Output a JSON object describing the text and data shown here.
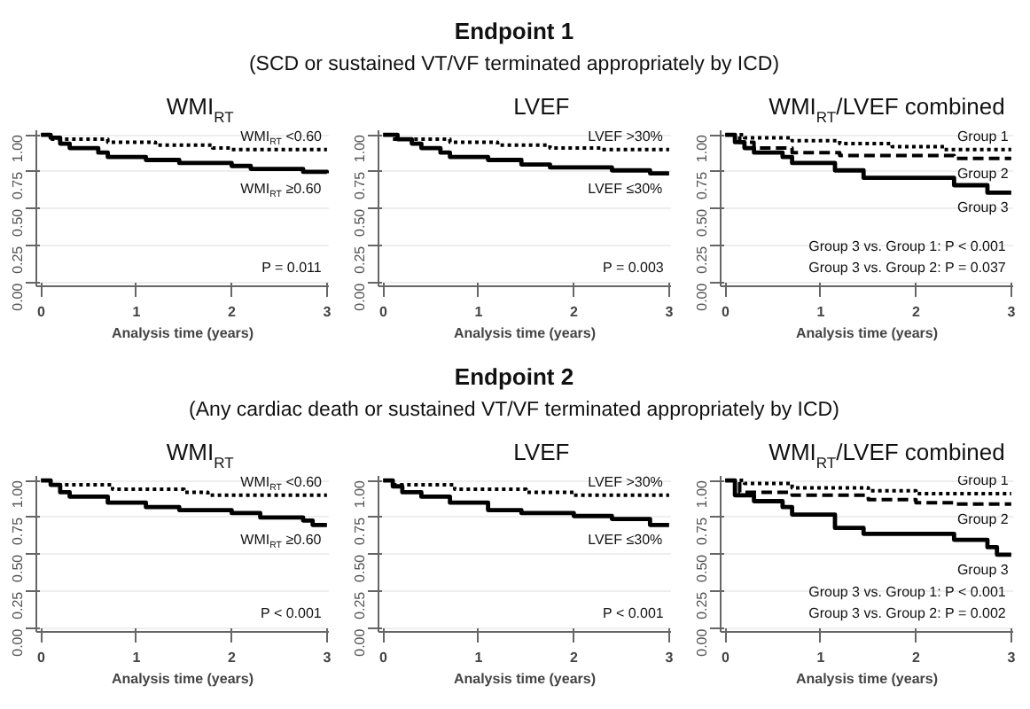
{
  "chart_data": [
    {
      "type": "other",
      "title": "Endpoint 1",
      "subtitle": "(SCD or sustained VT/VF terminated appropriately by ICD)"
    },
    {
      "type": "step",
      "title": "WMI$_{RT}$",
      "xlabel": "Analysis time (years)",
      "xlim": [
        -0.05,
        3.02
      ],
      "xticks": [
        0,
        1,
        2,
        3
      ],
      "ylim": [
        -0.02,
        1.03
      ],
      "yticks": [
        {
          "value": 0,
          "label": "0.00"
        },
        {
          "value": 0.25,
          "label": "0.25"
        },
        {
          "value": 0.5,
          "label": "0.50"
        },
        {
          "value": 0.75,
          "label": "0.75"
        },
        {
          "value": 1,
          "label": "1.00"
        }
      ],
      "grid": "y",
      "annotations": [
        "P = 0.011"
      ],
      "series": [
        {
          "name": "WMI$_{RT}$ <0.60",
          "color": "#000000",
          "line_style": "dotted",
          "x": [
            0,
            0.1,
            0.7,
            1.2,
            1.8,
            2.0,
            3.0
          ],
          "values": [
            1.0,
            0.97,
            0.95,
            0.93,
            0.91,
            0.9,
            0.9
          ]
        },
        {
          "name": "WMI$_{RT}$ ≥0.60",
          "color": "#000000",
          "line_style": "solid",
          "x": [
            0,
            0.1,
            0.2,
            0.3,
            0.6,
            0.7,
            1.1,
            1.45,
            2.0,
            2.2,
            2.75,
            3.0
          ],
          "values": [
            1.0,
            0.98,
            0.94,
            0.91,
            0.88,
            0.85,
            0.83,
            0.81,
            0.79,
            0.77,
            0.75,
            0.74
          ]
        }
      ]
    },
    {
      "type": "step",
      "title": "LVEF",
      "xlabel": "Analysis time (years)",
      "xlim": [
        -0.05,
        3.02
      ],
      "xticks": [
        0,
        1,
        2,
        3
      ],
      "ylim": [
        -0.02,
        1.03
      ],
      "yticks": [
        {
          "value": 0,
          "label": "0.00"
        },
        {
          "value": 0.25,
          "label": "0.25"
        },
        {
          "value": 0.5,
          "label": "0.50"
        },
        {
          "value": 0.75,
          "label": "0.75"
        },
        {
          "value": 1,
          "label": "1.00"
        }
      ],
      "grid": "y",
      "annotations": [
        "P = 0.003"
      ],
      "series": [
        {
          "name": "LVEF >30%",
          "color": "#000000",
          "line_style": "dotted",
          "x": [
            0,
            0.1,
            0.7,
            1.2,
            1.75,
            2.3,
            3.0
          ],
          "values": [
            1.0,
            0.97,
            0.95,
            0.93,
            0.91,
            0.9,
            0.9
          ]
        },
        {
          "name": "LVEF ≤30%",
          "color": "#000000",
          "line_style": "solid",
          "x": [
            0,
            0.15,
            0.3,
            0.4,
            0.6,
            0.7,
            1.1,
            1.45,
            1.75,
            2.4,
            2.8,
            3.0
          ],
          "values": [
            1.0,
            0.97,
            0.94,
            0.91,
            0.88,
            0.85,
            0.83,
            0.8,
            0.78,
            0.76,
            0.74,
            0.74
          ]
        }
      ]
    },
    {
      "type": "step",
      "title": "WMI$_{RT}$/LVEF combined",
      "xlabel": "Analysis time (years)",
      "xlim": [
        -0.05,
        3.02
      ],
      "xticks": [
        0,
        1,
        2,
        3
      ],
      "ylim": [
        -0.02,
        1.03
      ],
      "yticks": [
        {
          "value": 0,
          "label": "0.00"
        },
        {
          "value": 0.25,
          "label": "0.25"
        },
        {
          "value": 0.5,
          "label": "0.50"
        },
        {
          "value": 0.75,
          "label": "0.75"
        },
        {
          "value": 1,
          "label": "1.00"
        }
      ],
      "grid": "y",
      "annotations": [
        "Group 3 vs. Group 1: P < 0.001",
        "Group 3 vs. Group 2: P = 0.037"
      ],
      "series": [
        {
          "name": "Group 1",
          "color": "#000000",
          "line_style": "dotted",
          "x": [
            0,
            0.2,
            0.7,
            1.2,
            1.75,
            2.3,
            3.0
          ],
          "values": [
            1.0,
            0.98,
            0.96,
            0.94,
            0.92,
            0.9,
            0.9
          ]
        },
        {
          "name": "Group 2",
          "color": "#000000",
          "line_style": "dashed",
          "x": [
            0,
            0.15,
            0.3,
            0.7,
            1.2,
            2.4,
            3.0
          ],
          "values": [
            1.0,
            0.95,
            0.91,
            0.88,
            0.86,
            0.84,
            0.84
          ]
        },
        {
          "name": "Group 3",
          "color": "#000000",
          "line_style": "solid",
          "x": [
            0,
            0.1,
            0.2,
            0.3,
            0.6,
            0.7,
            1.15,
            1.45,
            2.4,
            2.75,
            3.0
          ],
          "values": [
            1.0,
            0.95,
            0.91,
            0.88,
            0.85,
            0.81,
            0.76,
            0.71,
            0.66,
            0.61,
            0.61
          ]
        }
      ]
    },
    {
      "type": "other",
      "title": "Endpoint 2",
      "subtitle": "(Any cardiac death or sustained VT/VF terminated appropriately by ICD)"
    },
    {
      "type": "step",
      "title": "WMI$_{RT}$",
      "xlabel": "Analysis time (years)",
      "xlim": [
        -0.05,
        3.02
      ],
      "xticks": [
        0,
        1,
        2,
        3
      ],
      "ylim": [
        -0.02,
        1.03
      ],
      "yticks": [
        {
          "value": 0,
          "label": "0.00"
        },
        {
          "value": 0.25,
          "label": "0.25"
        },
        {
          "value": 0.5,
          "label": "0.50"
        },
        {
          "value": 0.75,
          "label": "0.75"
        },
        {
          "value": 1,
          "label": "1.00"
        }
      ],
      "grid": "y",
      "annotations": [
        "P < 0.001"
      ],
      "series": [
        {
          "name": "WMI$_{RT}$ <0.60",
          "color": "#000000",
          "line_style": "dotted",
          "x": [
            0,
            0.1,
            0.75,
            1.5,
            1.75,
            3.0
          ],
          "values": [
            1.0,
            0.97,
            0.94,
            0.92,
            0.9,
            0.9
          ]
        },
        {
          "name": "WMI$_{RT}$ ≥0.60",
          "color": "#000000",
          "line_style": "solid",
          "x": [
            0,
            0.1,
            0.2,
            0.3,
            0.7,
            1.1,
            1.45,
            2.0,
            2.3,
            2.75,
            2.85,
            3.0
          ],
          "values": [
            1.0,
            0.97,
            0.92,
            0.89,
            0.85,
            0.82,
            0.8,
            0.78,
            0.75,
            0.73,
            0.7,
            0.7
          ]
        }
      ]
    },
    {
      "type": "step",
      "title": "LVEF",
      "xlabel": "Analysis time (years)",
      "xlim": [
        -0.05,
        3.02
      ],
      "xticks": [
        0,
        1,
        2,
        3
      ],
      "ylim": [
        -0.02,
        1.03
      ],
      "yticks": [
        {
          "value": 0,
          "label": "0.00"
        },
        {
          "value": 0.25,
          "label": "0.25"
        },
        {
          "value": 0.5,
          "label": "0.50"
        },
        {
          "value": 0.75,
          "label": "0.75"
        },
        {
          "value": 1,
          "label": "1.00"
        }
      ],
      "grid": "y",
      "annotations": [
        "P < 0.001"
      ],
      "series": [
        {
          "name": "LVEF >30%",
          "color": "#000000",
          "line_style": "dotted",
          "x": [
            0,
            0.1,
            0.75,
            1.5,
            2.0,
            3.0
          ],
          "values": [
            1.0,
            0.97,
            0.94,
            0.92,
            0.9,
            0.9
          ]
        },
        {
          "name": "LVEF ≤30%",
          "color": "#000000",
          "line_style": "solid",
          "x": [
            0,
            0.1,
            0.2,
            0.4,
            0.7,
            1.1,
            1.45,
            2.0,
            2.4,
            2.8,
            3.0
          ],
          "values": [
            1.0,
            0.96,
            0.92,
            0.89,
            0.85,
            0.8,
            0.78,
            0.76,
            0.74,
            0.7,
            0.7
          ]
        }
      ]
    },
    {
      "type": "step",
      "title": "WMI$_{RT}$/LVEF combined",
      "xlabel": "Analysis time (years)",
      "xlim": [
        -0.05,
        3.02
      ],
      "xticks": [
        0,
        1,
        2,
        3
      ],
      "ylim": [
        -0.02,
        1.03
      ],
      "yticks": [
        {
          "value": 0,
          "label": "0.00"
        },
        {
          "value": 0.25,
          "label": "0.25"
        },
        {
          "value": 0.5,
          "label": "0.50"
        },
        {
          "value": 0.75,
          "label": "0.75"
        },
        {
          "value": 1,
          "label": "1.00"
        }
      ],
      "grid": "y",
      "annotations": [
        "Group 3 vs. Group 1: P < 0.001",
        "Group 3 vs. Group 2: P = 0.002"
      ],
      "series": [
        {
          "name": "Group 1",
          "color": "#000000",
          "line_style": "dotted",
          "x": [
            0,
            0.2,
            0.7,
            1.5,
            2.0,
            3.0
          ],
          "values": [
            1.0,
            0.98,
            0.95,
            0.93,
            0.91,
            0.91
          ]
        },
        {
          "name": "Group 2",
          "color": "#000000",
          "line_style": "dashed",
          "x": [
            0,
            0.15,
            0.7,
            1.5,
            2.0,
            2.4,
            3.0
          ],
          "values": [
            1.0,
            0.92,
            0.9,
            0.87,
            0.85,
            0.84,
            0.84
          ]
        },
        {
          "name": "Group 3",
          "color": "#000000",
          "line_style": "solid",
          "x": [
            0,
            0.1,
            0.3,
            0.6,
            0.7,
            1.15,
            1.45,
            2.4,
            2.75,
            2.85,
            3.0
          ],
          "values": [
            1.0,
            0.9,
            0.86,
            0.82,
            0.77,
            0.68,
            0.64,
            0.6,
            0.55,
            0.5,
            0.5
          ]
        }
      ]
    }
  ]
}
